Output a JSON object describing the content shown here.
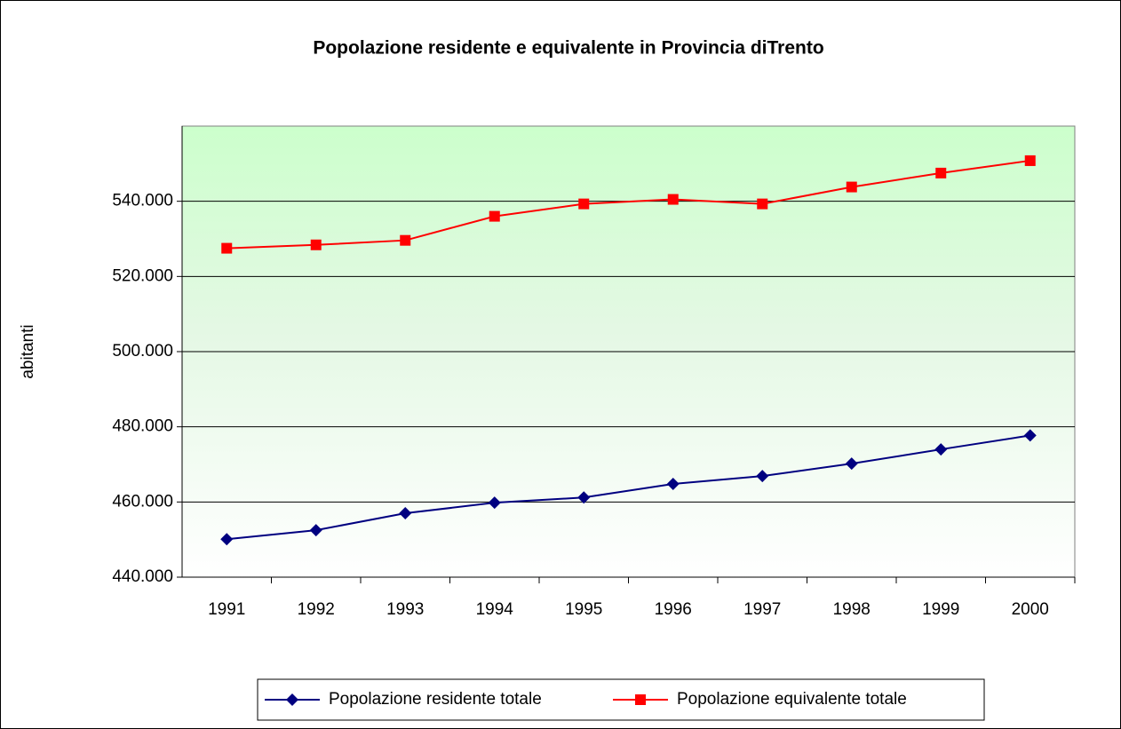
{
  "chart_data": {
    "type": "line",
    "title": "Popolazione residente e equivalente in Provincia diTrento",
    "ylabel": "abitanti",
    "categories": [
      "1991",
      "1992",
      "1993",
      "1994",
      "1995",
      "1996",
      "1997",
      "1998",
      "1999",
      "2000"
    ],
    "series": [
      {
        "name": "Popolazione residente totale",
        "color": "#000080",
        "marker": "diamond",
        "values": [
          450100,
          452500,
          457000,
          459800,
          461200,
          464800,
          466900,
          470200,
          474000,
          477700
        ]
      },
      {
        "name": "Popolazione equivalente totale",
        "color": "#ff0000",
        "marker": "square",
        "values": [
          527500,
          528400,
          529600,
          536000,
          539300,
          540500,
          539300,
          543800,
          547500,
          550800
        ]
      }
    ],
    "ylim": [
      440000,
      560000
    ],
    "yticks": [
      {
        "value": 440000,
        "label": "440.000"
      },
      {
        "value": 460000,
        "label": "460.000"
      },
      {
        "value": 480000,
        "label": "480.000"
      },
      {
        "value": 500000,
        "label": "500.000"
      },
      {
        "value": 520000,
        "label": "520.000"
      },
      {
        "value": 540000,
        "label": "540.000"
      }
    ],
    "grid": true,
    "legend": "bottom"
  }
}
